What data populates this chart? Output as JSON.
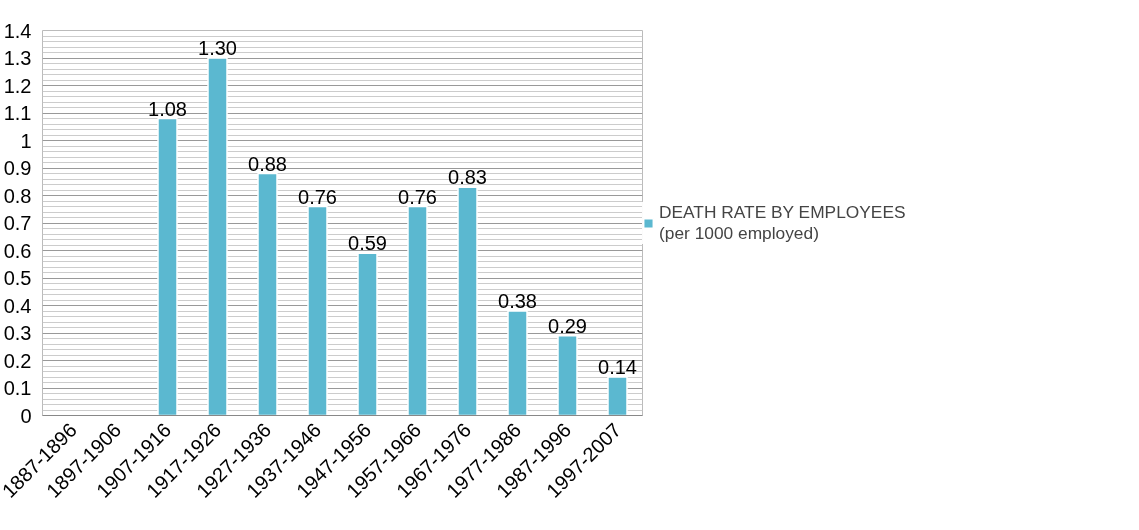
{
  "chart_data": {
    "type": "bar",
    "categories": [
      "1887-1896",
      "1897-1906",
      "1907-1916",
      "1917-1926",
      "1927-1936",
      "1937-1946",
      "1947-1956",
      "1957-1966",
      "1967-1976",
      "1977-1986",
      "1987-1996",
      "1997-2007"
    ],
    "series": [
      {
        "name": "DEATH RATE BY EMPLOYEES\n(per 1000 employed)",
        "color": "#5bb8d0",
        "values": [
          null,
          null,
          1.08,
          1.3,
          0.88,
          0.76,
          0.59,
          0.76,
          0.83,
          0.38,
          0.29,
          0.14
        ],
        "value_labels": [
          null,
          null,
          "1.08",
          "1.30",
          "0.88",
          "0.76",
          "0.59",
          "0.76",
          "0.83",
          "0.38",
          "0.29",
          "0.14"
        ]
      }
    ],
    "ylim": [
      0,
      1.4
    ],
    "yticks": [
      0,
      0.1,
      0.2,
      0.3,
      0.4,
      0.5,
      0.6,
      0.7,
      0.8,
      0.9,
      1,
      1.1,
      1.2,
      1.3,
      1.4
    ],
    "grid": "y",
    "legend": "right"
  }
}
